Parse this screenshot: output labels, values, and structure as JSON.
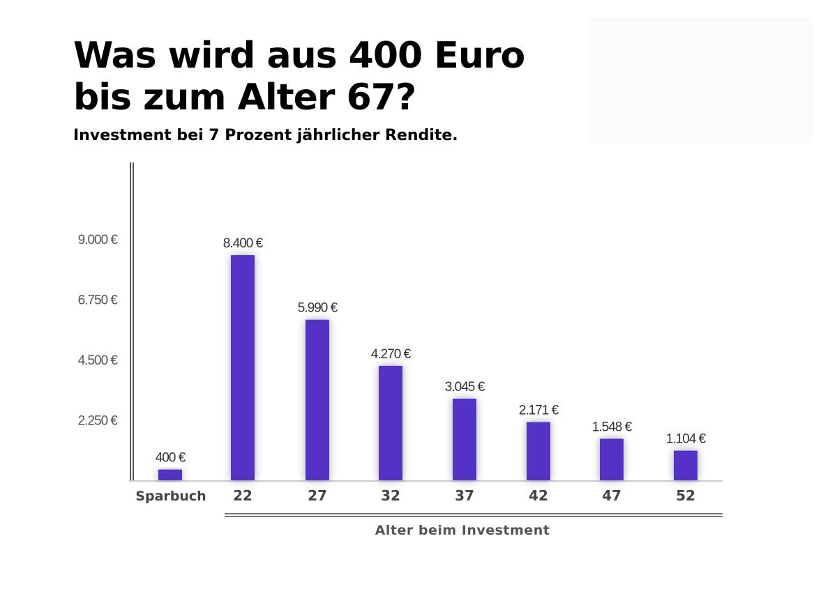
{
  "chart_data": {
    "type": "bar",
    "title": [
      "Was wird aus 400 Euro",
      "bis zum Alter 67?"
    ],
    "subtitle": "Investment bei 7 Prozent jährlicher Rendite.",
    "xlabel": "Alter beim Investment",
    "ylabel": "",
    "categories": [
      "Sparbuch",
      "22",
      "27",
      "32",
      "37",
      "42",
      "47",
      "52"
    ],
    "values": [
      400,
      8400,
      5990,
      4270,
      3045,
      2171,
      1548,
      1104
    ],
    "value_labels": [
      "400 €",
      "8.400 €",
      "5.990 €",
      "4.270 €",
      "3.045 €",
      "2.171 €",
      "1.548 €",
      "1.104 €"
    ],
    "y_ticks": [
      2250,
      4500,
      6750,
      9000
    ],
    "y_tick_labels": [
      "2.250 €",
      "4.500 €",
      "6.750 €",
      "9.000 €"
    ],
    "ylim": [
      0,
      11000
    ],
    "grid": false,
    "legend": "none",
    "colors": {
      "bar": "#5233c6",
      "axis": "#222222",
      "baseline": "#cccccc"
    }
  }
}
